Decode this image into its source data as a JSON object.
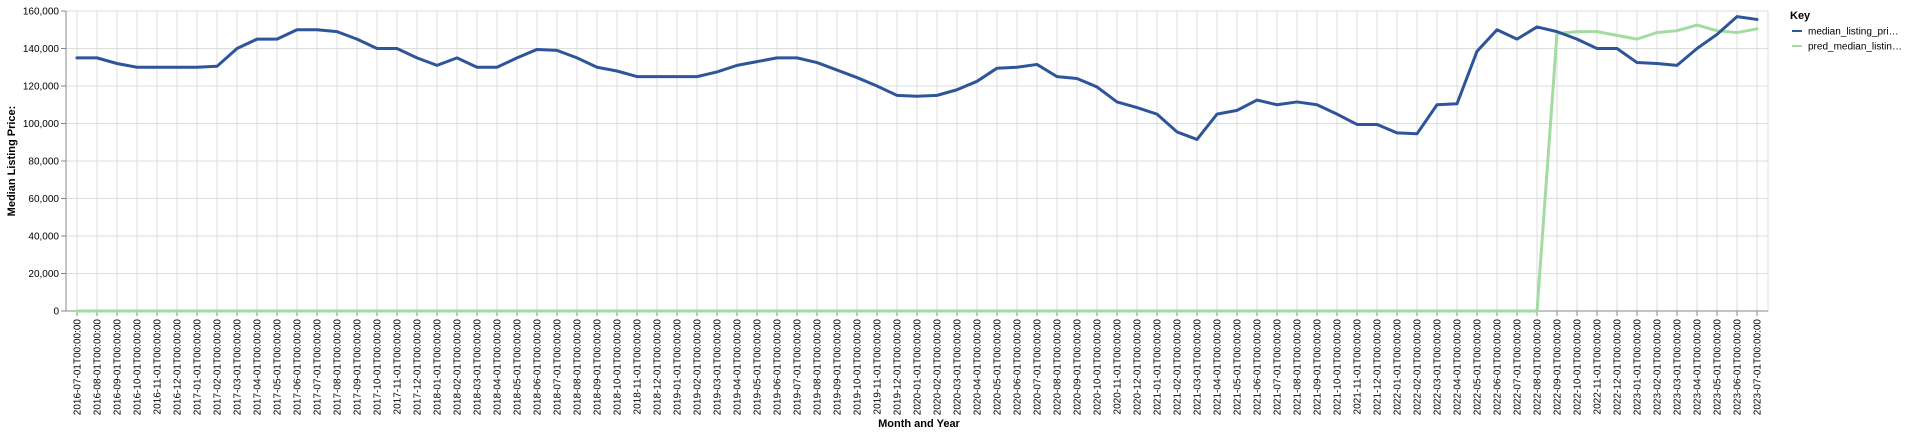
{
  "chart_data": {
    "type": "line",
    "xlabel": "Month and Year",
    "ylabel": "Median Listing Price:",
    "ylim": [
      0,
      160000
    ],
    "y_ticks": [
      0,
      20000,
      40000,
      60000,
      80000,
      100000,
      120000,
      140000,
      160000
    ],
    "y_tick_labels": [
      "0",
      "20,000",
      "40,000",
      "60,000",
      "80,000",
      "100,000",
      "120,000",
      "140,000",
      "160,000"
    ],
    "grid": true,
    "legend": {
      "title": "Key",
      "position": "right"
    },
    "x": [
      "2016-07-01T00:00:00",
      "2016-08-01T00:00:00",
      "2016-09-01T00:00:00",
      "2016-10-01T00:00:00",
      "2016-11-01T00:00:00",
      "2016-12-01T00:00:00",
      "2017-01-01T00:00:00",
      "2017-02-01T00:00:00",
      "2017-03-01T00:00:00",
      "2017-04-01T00:00:00",
      "2017-05-01T00:00:00",
      "2017-06-01T00:00:00",
      "2017-07-01T00:00:00",
      "2017-08-01T00:00:00",
      "2017-09-01T00:00:00",
      "2017-10-01T00:00:00",
      "2017-11-01T00:00:00",
      "2017-12-01T00:00:00",
      "2018-01-01T00:00:00",
      "2018-02-01T00:00:00",
      "2018-03-01T00:00:00",
      "2018-04-01T00:00:00",
      "2018-05-01T00:00:00",
      "2018-06-01T00:00:00",
      "2018-07-01T00:00:00",
      "2018-08-01T00:00:00",
      "2018-09-01T00:00:00",
      "2018-10-01T00:00:00",
      "2018-11-01T00:00:00",
      "2018-12-01T00:00:00",
      "2019-01-01T00:00:00",
      "2019-02-01T00:00:00",
      "2019-03-01T00:00:00",
      "2019-04-01T00:00:00",
      "2019-05-01T00:00:00",
      "2019-06-01T00:00:00",
      "2019-07-01T00:00:00",
      "2019-08-01T00:00:00",
      "2019-09-01T00:00:00",
      "2019-10-01T00:00:00",
      "2019-11-01T00:00:00",
      "2019-12-01T00:00:00",
      "2020-01-01T00:00:00",
      "2020-02-01T00:00:00",
      "2020-03-01T00:00:00",
      "2020-04-01T00:00:00",
      "2020-05-01T00:00:00",
      "2020-06-01T00:00:00",
      "2020-07-01T00:00:00",
      "2020-08-01T00:00:00",
      "2020-09-01T00:00:00",
      "2020-10-01T00:00:00",
      "2020-11-01T00:00:00",
      "2020-12-01T00:00:00",
      "2021-01-01T00:00:00",
      "2021-02-01T00:00:00",
      "2021-03-01T00:00:00",
      "2021-04-01T00:00:00",
      "2021-05-01T00:00:00",
      "2021-06-01T00:00:00",
      "2021-07-01T00:00:00",
      "2021-08-01T00:00:00",
      "2021-09-01T00:00:00",
      "2021-10-01T00:00:00",
      "2021-11-01T00:00:00",
      "2021-12-01T00:00:00",
      "2022-01-01T00:00:00",
      "2022-02-01T00:00:00",
      "2022-03-01T00:00:00",
      "2022-04-01T00:00:00",
      "2022-05-01T00:00:00",
      "2022-06-01T00:00:00",
      "2022-07-01T00:00:00",
      "2022-08-01T00:00:00",
      "2022-09-01T00:00:00",
      "2022-10-01T00:00:00",
      "2022-11-01T00:00:00",
      "2022-12-01T00:00:00",
      "2023-01-01T00:00:00",
      "2023-02-01T00:00:00",
      "2023-03-01T00:00:00",
      "2023-04-01T00:00:00",
      "2023-05-01T00:00:00",
      "2023-06-01T00:00:00",
      "2023-07-01T00:00:00"
    ],
    "series": [
      {
        "name": "median_listing_pri…",
        "color": "#2e5599",
        "values": [
          135000,
          135000,
          132000,
          130000,
          130000,
          130000,
          130000,
          130500,
          140000,
          145000,
          145000,
          150000,
          150000,
          149000,
          145000,
          140000,
          140000,
          135000,
          131000,
          135000,
          130000,
          130000,
          135000,
          139500,
          139000,
          135000,
          130000,
          128000,
          125000,
          125000,
          125000,
          125000,
          127500,
          131000,
          133000,
          135000,
          135000,
          132500,
          128500,
          124500,
          120000,
          115000,
          114500,
          115000,
          118000,
          122500,
          129500,
          130000,
          131500,
          125000,
          124000,
          119500,
          111500,
          108500,
          105000,
          95500,
          91500,
          105000,
          107000,
          112500,
          110000,
          111500,
          110000,
          105000,
          99500,
          99500,
          95000,
          94500,
          110000,
          110500,
          138500,
          150000,
          145000,
          151500,
          149000,
          145000,
          140000,
          140000,
          132500,
          132000,
          131000,
          140000,
          147500,
          157000,
          155500
        ]
      },
      {
        "name": "pred_median_listin…",
        "color": "#a3dba1",
        "values": [
          0,
          0,
          0,
          0,
          0,
          0,
          0,
          0,
          0,
          0,
          0,
          0,
          0,
          0,
          0,
          0,
          0,
          0,
          0,
          0,
          0,
          0,
          0,
          0,
          0,
          0,
          0,
          0,
          0,
          0,
          0,
          0,
          0,
          0,
          0,
          0,
          0,
          0,
          0,
          0,
          0,
          0,
          0,
          0,
          0,
          0,
          0,
          0,
          0,
          0,
          0,
          0,
          0,
          0,
          0,
          0,
          0,
          0,
          0,
          0,
          0,
          0,
          0,
          0,
          0,
          0,
          0,
          0,
          0,
          0,
          0,
          0,
          0,
          0,
          148000,
          149000,
          149000,
          147000,
          145000,
          148500,
          149500,
          152500,
          149500,
          148500,
          150500
        ]
      }
    ]
  }
}
